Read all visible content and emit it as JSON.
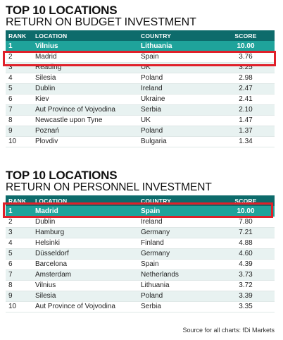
{
  "budget": {
    "title": "TOP 10 LOCATIONS",
    "subtitle": "RETURN ON BUDGET INVESTMENT",
    "headers": [
      "RANK",
      "LOCATION",
      "COUNTRY",
      "SCORE"
    ],
    "rows": [
      {
        "rank": "1",
        "location": "Vilnius",
        "country": "Lithuania",
        "score": "10.00"
      },
      {
        "rank": "2",
        "location": "Madrid",
        "country": "Spain",
        "score": "3.76"
      },
      {
        "rank": "3",
        "location": "Reading",
        "country": "UK",
        "score": "3.25"
      },
      {
        "rank": "4",
        "location": "Silesia",
        "country": "Poland",
        "score": "2.98"
      },
      {
        "rank": "5",
        "location": "Dublin",
        "country": "Ireland",
        "score": "2.47"
      },
      {
        "rank": "6",
        "location": "Kiev",
        "country": "Ukraine",
        "score": "2.41"
      },
      {
        "rank": "7",
        "location": "Aut Province of Vojvodina",
        "country": "Serbia",
        "score": "2.10"
      },
      {
        "rank": "8",
        "location": "Newcastle upon Tyne",
        "country": "UK",
        "score": "1.47"
      },
      {
        "rank": "9",
        "location": "Poznań",
        "country": "Poland",
        "score": "1.37"
      },
      {
        "rank": "10",
        "location": "Plovdiv",
        "country": "Bulgaria",
        "score": "1.34"
      }
    ]
  },
  "personnel": {
    "title": "TOP 10 LOCATIONS",
    "subtitle": "RETURN ON PERSONNEL INVESTMENT",
    "headers": [
      "RANK",
      "LOCATION",
      "COUNTRY",
      "SCORE"
    ],
    "rows": [
      {
        "rank": "1",
        "location": "Madrid",
        "country": "Spain",
        "score": "10.00"
      },
      {
        "rank": "2",
        "location": "Dublin",
        "country": "Ireland",
        "score": "7.80"
      },
      {
        "rank": "3",
        "location": "Hamburg",
        "country": "Germany",
        "score": "7.21"
      },
      {
        "rank": "4",
        "location": "Helsinki",
        "country": "Finland",
        "score": "4.88"
      },
      {
        "rank": "5",
        "location": "Düsseldorf",
        "country": "Germany",
        "score": "4.60"
      },
      {
        "rank": "6",
        "location": "Barcelona",
        "country": "Spain",
        "score": "4.39"
      },
      {
        "rank": "7",
        "location": "Amsterdam",
        "country": "Netherlands",
        "score": "3.73"
      },
      {
        "rank": "8",
        "location": "Vilnius",
        "country": "Lithuania",
        "score": "3.72"
      },
      {
        "rank": "9",
        "location": "Silesia",
        "country": "Poland",
        "score": "3.39"
      },
      {
        "rank": "10",
        "location": "Aut Province of Vojvodina",
        "country": "Serbia",
        "score": "3.35"
      }
    ]
  },
  "source": "Source for all charts: fDi Markets",
  "colors": {
    "header": "#0d6b6b",
    "highlight_row": "#1fa39b",
    "alt_row": "#e8f2f1",
    "annotation_box": "#e0202a"
  }
}
